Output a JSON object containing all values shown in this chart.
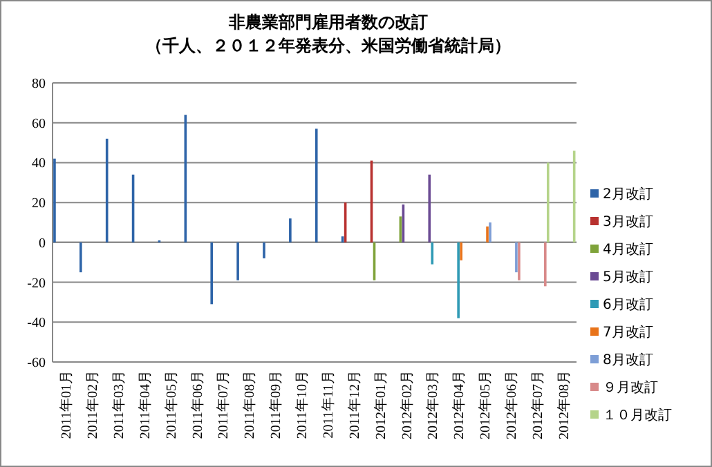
{
  "chart_data": {
    "type": "bar",
    "title": "非農業部門雇用者数の改訂",
    "subtitle": "（千人、２０１２年発表分、米国労働省統計局）",
    "categories": [
      "2011年01月",
      "2011年02月",
      "2011年03月",
      "2011年04月",
      "2011年05月",
      "2011年06月",
      "2011年07月",
      "2011年08月",
      "2011年09月",
      "2011年10月",
      "2011年11月",
      "2011年12月",
      "2012年01月",
      "2012年02月",
      "2012年03月",
      "2012年04月",
      "2012年05月",
      "2012年06月",
      "2012年07月",
      "2012年08月"
    ],
    "series": [
      {
        "name": "2月改訂",
        "color": "#2e64a8",
        "values": [
          42,
          -15,
          52,
          34,
          1,
          64,
          -31,
          -19,
          -8,
          12,
          57,
          3,
          null,
          null,
          null,
          null,
          null,
          null,
          null,
          null
        ]
      },
      {
        "name": "3月改訂",
        "color": "#b8312f",
        "values": [
          null,
          null,
          null,
          null,
          null,
          null,
          null,
          null,
          null,
          null,
          null,
          20,
          41,
          null,
          null,
          null,
          null,
          null,
          null,
          null
        ]
      },
      {
        "name": "4月改訂",
        "color": "#7fa33a",
        "values": [
          null,
          null,
          null,
          null,
          null,
          null,
          null,
          null,
          null,
          null,
          null,
          null,
          -19,
          13,
          null,
          null,
          null,
          null,
          null,
          null
        ]
      },
      {
        "name": "5月改訂",
        "color": "#6a4a93",
        "values": [
          null,
          null,
          null,
          null,
          null,
          null,
          null,
          null,
          null,
          null,
          null,
          null,
          null,
          19,
          34,
          null,
          null,
          null,
          null,
          null
        ]
      },
      {
        "name": "6月改訂",
        "color": "#2f9ab5",
        "values": [
          null,
          null,
          null,
          null,
          null,
          null,
          null,
          null,
          null,
          null,
          null,
          null,
          null,
          null,
          -11,
          -38,
          null,
          null,
          null,
          null
        ]
      },
      {
        "name": "7月改訂",
        "color": "#e8731a",
        "values": [
          null,
          null,
          null,
          null,
          null,
          null,
          null,
          null,
          null,
          null,
          null,
          null,
          null,
          null,
          null,
          -9,
          8,
          null,
          null,
          null
        ]
      },
      {
        "name": "8月改訂",
        "color": "#7d9ed6",
        "values": [
          null,
          null,
          null,
          null,
          null,
          null,
          null,
          null,
          null,
          null,
          null,
          null,
          null,
          null,
          null,
          null,
          10,
          -15,
          null,
          null
        ]
      },
      {
        "name": "９月改訂",
        "color": "#d88a8a",
        "values": [
          null,
          null,
          null,
          null,
          null,
          null,
          null,
          null,
          null,
          null,
          null,
          null,
          null,
          null,
          null,
          null,
          null,
          -19,
          -22,
          null
        ]
      },
      {
        "name": "１０月改訂",
        "color": "#b5d48a",
        "values": [
          null,
          null,
          null,
          null,
          null,
          null,
          null,
          null,
          null,
          null,
          null,
          null,
          null,
          null,
          null,
          null,
          null,
          null,
          40,
          46
        ]
      }
    ],
    "ylim": [
      -60,
      80
    ],
    "yticks": [
      -60,
      -40,
      -20,
      0,
      20,
      40,
      60,
      80
    ],
    "grid": "y",
    "legend": "right"
  }
}
